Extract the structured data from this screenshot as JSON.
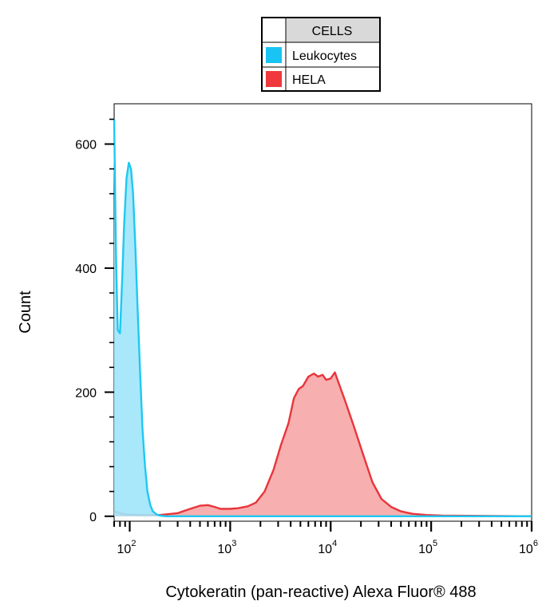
{
  "chart_data": {
    "type": "area",
    "title": "",
    "xlabel": "Cytokeratin (pan-reactive) Alexa Fluor® 488",
    "ylabel": "Count",
    "xscale": "log",
    "xlim": [
      70,
      1000000
    ],
    "ylim": [
      -8,
      665
    ],
    "yticks": [
      0,
      200,
      400,
      600
    ],
    "xticks": [
      {
        "value": 100,
        "base": "10",
        "exp": "2"
      },
      {
        "value": 1000,
        "base": "10",
        "exp": "3"
      },
      {
        "value": 10000,
        "base": "10",
        "exp": "4"
      },
      {
        "value": 100000,
        "base": "10",
        "exp": "5"
      },
      {
        "value": 1000000,
        "base": "10",
        "exp": "6"
      }
    ],
    "legend": {
      "header": "CELLS",
      "placement": "top-center",
      "entries": [
        "Leukocytes",
        "HELA"
      ]
    },
    "series": [
      {
        "name": "Leukocytes",
        "color": "#1ec8f2",
        "fill": "#9fe6fa",
        "points": [
          [
            70,
            640
          ],
          [
            73,
            420
          ],
          [
            76,
            300
          ],
          [
            80,
            295
          ],
          [
            84,
            380
          ],
          [
            88,
            470
          ],
          [
            93,
            545
          ],
          [
            98,
            570
          ],
          [
            103,
            560
          ],
          [
            108,
            520
          ],
          [
            114,
            430
          ],
          [
            120,
            330
          ],
          [
            127,
            230
          ],
          [
            134,
            140
          ],
          [
            142,
            80
          ],
          [
            150,
            40
          ],
          [
            160,
            18
          ],
          [
            170,
            8
          ],
          [
            185,
            3
          ],
          [
            200,
            1
          ],
          [
            230,
            0
          ],
          [
            1000000,
            0
          ]
        ]
      },
      {
        "name": "HELA",
        "color": "#e8353a",
        "fill": "#f6a6a6",
        "points": [
          [
            70,
            8
          ],
          [
            90,
            3
          ],
          [
            130,
            2
          ],
          [
            200,
            2
          ],
          [
            300,
            5
          ],
          [
            400,
            12
          ],
          [
            500,
            17
          ],
          [
            600,
            18
          ],
          [
            700,
            15
          ],
          [
            800,
            12
          ],
          [
            1000,
            12
          ],
          [
            1200,
            13
          ],
          [
            1500,
            16
          ],
          [
            1800,
            22
          ],
          [
            2200,
            40
          ],
          [
            2700,
            75
          ],
          [
            3200,
            115
          ],
          [
            3800,
            150
          ],
          [
            4300,
            190
          ],
          [
            4800,
            205
          ],
          [
            5300,
            210
          ],
          [
            6000,
            225
          ],
          [
            6800,
            230
          ],
          [
            7500,
            225
          ],
          [
            8300,
            228
          ],
          [
            9000,
            220
          ],
          [
            10000,
            222
          ],
          [
            11000,
            232
          ],
          [
            12000,
            215
          ],
          [
            14000,
            185
          ],
          [
            17000,
            145
          ],
          [
            21000,
            100
          ],
          [
            26000,
            55
          ],
          [
            32000,
            28
          ],
          [
            40000,
            15
          ],
          [
            50000,
            8
          ],
          [
            65000,
            4
          ],
          [
            90000,
            2
          ],
          [
            130000,
            1
          ],
          [
            1000000,
            0
          ]
        ]
      }
    ]
  }
}
